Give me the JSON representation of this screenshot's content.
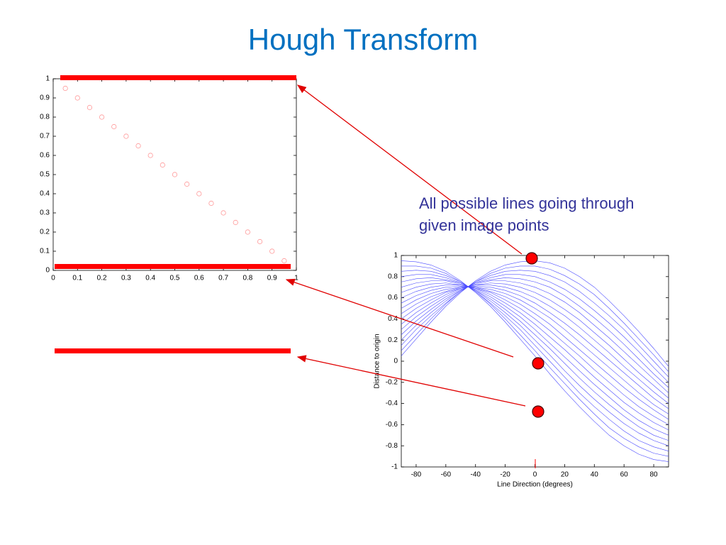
{
  "title": "Hough Transform",
  "annotation": "All possible lines going through given image points",
  "chart_data": [
    {
      "type": "scatter",
      "color": "#ff9999",
      "x": [
        0.05,
        0.1,
        0.15,
        0.2,
        0.25,
        0.3,
        0.35,
        0.4,
        0.45,
        0.5,
        0.55,
        0.6,
        0.65,
        0.7,
        0.75,
        0.8,
        0.85,
        0.9,
        0.95
      ],
      "values": [
        0.95,
        0.9,
        0.85,
        0.8,
        0.75,
        0.7,
        0.65,
        0.6,
        0.55,
        0.5,
        0.45,
        0.4,
        0.35,
        0.3,
        0.25,
        0.2,
        0.15,
        0.1,
        0.05
      ],
      "xlim": [
        0,
        1
      ],
      "ylim": [
        0,
        1
      ],
      "xticks": [
        0,
        0.1,
        0.2,
        0.3,
        0.4,
        0.5,
        0.6,
        0.7,
        0.8,
        0.9,
        1
      ],
      "yticks": [
        0,
        0.1,
        0.2,
        0.3,
        0.4,
        0.5,
        0.6,
        0.7,
        0.8,
        0.9,
        1
      ]
    },
    {
      "type": "line",
      "color": "#4a4aff",
      "xlabel": "Line Direction (degrees)",
      "ylabel": "Distance to origin",
      "x": [
        -90,
        -80,
        -70,
        -60,
        -50,
        -40,
        -30,
        -20,
        -10,
        0,
        10,
        20,
        30,
        40,
        50,
        60,
        70,
        80,
        90
      ],
      "series": [
        {
          "values": [
            0.05,
            0.21,
            0.37,
            0.52,
            0.65,
            0.76,
            0.85,
            0.91,
            0.94,
            0.95,
            0.93,
            0.88,
            0.8,
            0.7,
            0.57,
            0.43,
            0.28,
            0.12,
            -0.05
          ]
        },
        {
          "values": [
            0.1,
            0.25,
            0.4,
            0.54,
            0.66,
            0.75,
            0.83,
            0.88,
            0.9,
            0.9,
            0.87,
            0.81,
            0.73,
            0.63,
            0.5,
            0.36,
            0.21,
            0.06,
            -0.1
          ]
        },
        {
          "values": [
            0.15,
            0.3,
            0.43,
            0.55,
            0.66,
            0.75,
            0.81,
            0.85,
            0.86,
            0.85,
            0.81,
            0.75,
            0.66,
            0.55,
            0.43,
            0.3,
            0.15,
            0,
            -0.15
          ]
        },
        {
          "values": [
            0.2,
            0.34,
            0.46,
            0.57,
            0.67,
            0.74,
            0.79,
            0.82,
            0.82,
            0.8,
            0.75,
            0.68,
            0.59,
            0.48,
            0.36,
            0.23,
            0.09,
            -0.06,
            -0.2
          ]
        },
        {
          "values": [
            0.25,
            0.38,
            0.49,
            0.59,
            0.67,
            0.74,
            0.77,
            0.79,
            0.78,
            0.75,
            0.7,
            0.62,
            0.52,
            0.41,
            0.29,
            0.16,
            0.02,
            -0.12,
            -0.25
          ]
        },
        {
          "values": [
            0.3,
            0.42,
            0.52,
            0.61,
            0.68,
            0.73,
            0.76,
            0.76,
            0.74,
            0.7,
            0.64,
            0.56,
            0.46,
            0.34,
            0.22,
            0.09,
            -0.04,
            -0.17,
            -0.3
          ]
        },
        {
          "values": [
            0.35,
            0.46,
            0.55,
            0.63,
            0.69,
            0.72,
            0.74,
            0.73,
            0.7,
            0.65,
            0.58,
            0.49,
            0.39,
            0.27,
            0.15,
            0.02,
            -0.11,
            -0.23,
            -0.35
          ]
        },
        {
          "values": [
            0.4,
            0.5,
            0.58,
            0.65,
            0.69,
            0.72,
            0.72,
            0.7,
            0.66,
            0.6,
            0.52,
            0.43,
            0.32,
            0.2,
            0.08,
            -0.05,
            -0.17,
            -0.29,
            -0.4
          ]
        },
        {
          "values": [
            0.45,
            0.54,
            0.61,
            0.66,
            0.7,
            0.71,
            0.7,
            0.67,
            0.62,
            0.55,
            0.46,
            0.36,
            0.25,
            0.13,
            0.01,
            -0.11,
            -0.23,
            -0.35,
            -0.45
          ]
        },
        {
          "values": [
            0.5,
            0.58,
            0.64,
            0.68,
            0.7,
            0.7,
            0.68,
            0.64,
            0.58,
            0.5,
            0.41,
            0.3,
            0.18,
            0.06,
            -0.06,
            -0.18,
            -0.3,
            -0.41,
            -0.5
          ]
        },
        {
          "values": [
            0.55,
            0.62,
            0.67,
            0.7,
            0.71,
            0.7,
            0.66,
            0.61,
            0.54,
            0.45,
            0.35,
            0.23,
            0.11,
            -0.01,
            -0.13,
            -0.25,
            -0.36,
            -0.46,
            -0.55
          ]
        },
        {
          "values": [
            0.6,
            0.66,
            0.7,
            0.72,
            0.72,
            0.69,
            0.65,
            0.58,
            0.5,
            0.4,
            0.29,
            0.17,
            0.05,
            -0.08,
            -0.2,
            -0.32,
            -0.43,
            -0.52,
            -0.6
          ]
        },
        {
          "values": [
            0.65,
            0.7,
            0.73,
            0.74,
            0.72,
            0.69,
            0.63,
            0.55,
            0.46,
            0.35,
            0.23,
            0.11,
            -0.02,
            -0.15,
            -0.27,
            -0.39,
            -0.49,
            -0.58,
            -0.65
          ]
        },
        {
          "values": [
            0.7,
            0.74,
            0.76,
            0.76,
            0.73,
            0.68,
            0.61,
            0.52,
            0.42,
            0.3,
            0.17,
            0.04,
            -0.09,
            -0.22,
            -0.34,
            -0.46,
            -0.56,
            -0.64,
            -0.7
          ]
        },
        {
          "values": [
            0.75,
            0.78,
            0.79,
            0.77,
            0.74,
            0.67,
            0.59,
            0.49,
            0.38,
            0.25,
            0.12,
            -0.02,
            -0.16,
            -0.29,
            -0.41,
            -0.52,
            -0.62,
            -0.7,
            -0.75
          ]
        },
        {
          "values": [
            0.8,
            0.82,
            0.82,
            0.79,
            0.74,
            0.67,
            0.57,
            0.46,
            0.34,
            0.2,
            0.06,
            -0.09,
            -0.23,
            -0.36,
            -0.48,
            -0.59,
            -0.68,
            -0.75,
            -0.8
          ]
        },
        {
          "values": [
            0.85,
            0.86,
            0.85,
            0.81,
            0.75,
            0.66,
            0.55,
            0.43,
            0.3,
            0.15,
            0,
            -0.15,
            -0.3,
            -0.43,
            -0.55,
            -0.66,
            -0.75,
            -0.81,
            -0.85
          ]
        },
        {
          "values": [
            0.9,
            0.9,
            0.88,
            0.83,
            0.75,
            0.66,
            0.54,
            0.4,
            0.25,
            0.1,
            -0.06,
            -0.21,
            -0.36,
            -0.5,
            -0.63,
            -0.73,
            -0.81,
            -0.87,
            -0.9
          ]
        },
        {
          "values": [
            0.95,
            0.94,
            0.91,
            0.85,
            0.76,
            0.65,
            0.52,
            0.37,
            0.21,
            0.05,
            -0.12,
            -0.28,
            -0.43,
            -0.57,
            -0.7,
            -0.8,
            -0.88,
            -0.93,
            -0.95
          ]
        }
      ],
      "xlim": [
        -90,
        90
      ],
      "ylim": [
        -1,
        1
      ],
      "xticks": [
        -80,
        -60,
        -40,
        -20,
        0,
        20,
        40,
        60,
        80
      ],
      "yticks": [
        -1,
        -0.8,
        -0.6,
        -0.4,
        -0.2,
        0,
        0.2,
        0.4,
        0.6,
        0.8,
        1
      ]
    }
  ]
}
